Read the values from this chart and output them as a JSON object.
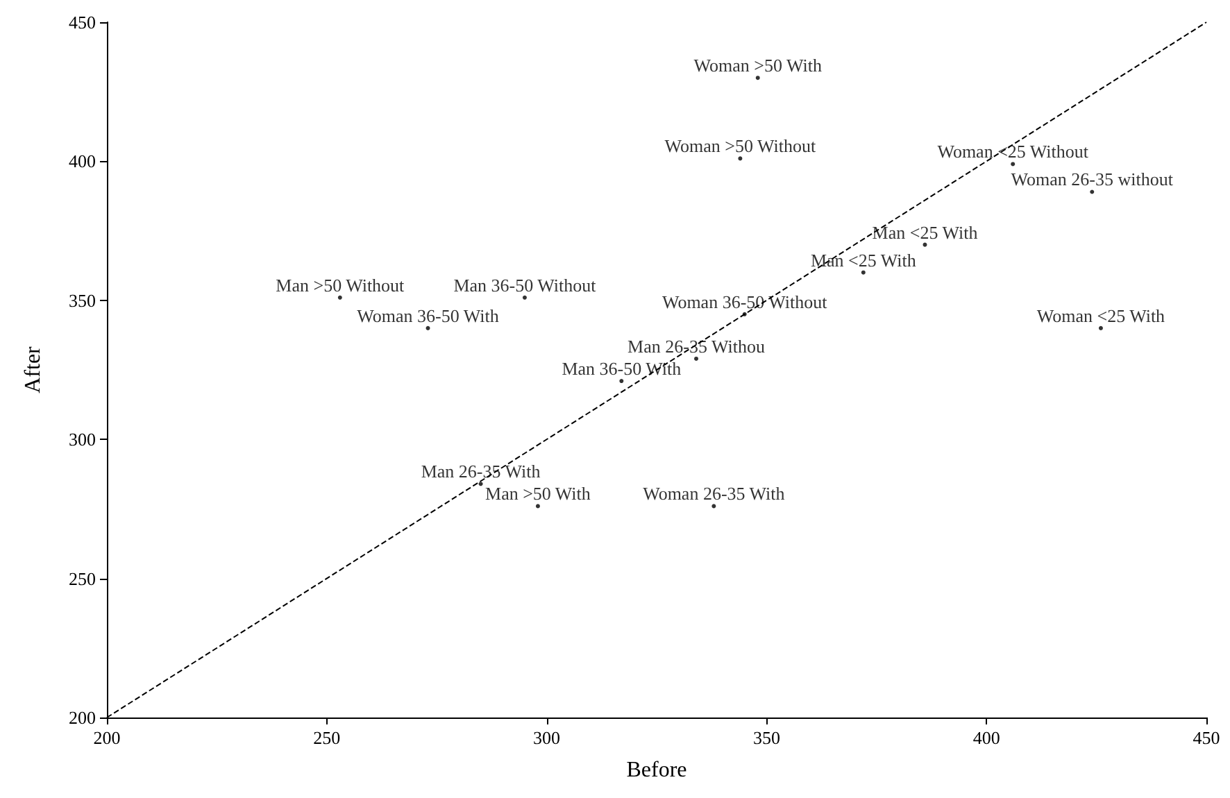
{
  "chart_data": {
    "type": "scatter",
    "xlabel": "Before",
    "ylabel": "After",
    "xlim": [
      200,
      450
    ],
    "xticks": [
      200,
      250,
      300,
      350,
      400,
      450
    ],
    "ylim": [
      200,
      450
    ],
    "yticks": [
      200,
      250,
      300,
      350,
      400,
      450
    ],
    "grid": false,
    "marker": "none",
    "series": [
      {
        "color": "#000000",
        "x": [
          348,
          344,
          406,
          424,
          386,
          372,
          253,
          295,
          345,
          273,
          426,
          334,
          317,
          285,
          298,
          338
        ],
        "values": [
          430,
          401,
          399,
          389,
          370,
          360,
          351,
          351,
          345,
          340,
          340,
          329,
          321,
          284,
          276,
          276
        ],
        "value_labels": [
          "Woman >50 With",
          "Woman >50 Without",
          "Woman <25 Without",
          "Woman 26-35 without",
          "Man <25 With",
          "Man <25 With",
          "Man >50 Without",
          "Man 36-50 Without",
          "Woman 36-50 Without",
          "Woman 36-50 With",
          "Woman <25 With",
          "Man 26-35 Withou",
          "Man 36-50 With",
          "Man 26-35 With",
          "Man >50 With",
          "Woman 26-35 With"
        ]
      },
      {
        "type": "line",
        "color": "#000000",
        "line_style": "dashed",
        "marker": "none",
        "x": [
          200,
          450
        ],
        "values": [
          200,
          450
        ]
      }
    ]
  }
}
